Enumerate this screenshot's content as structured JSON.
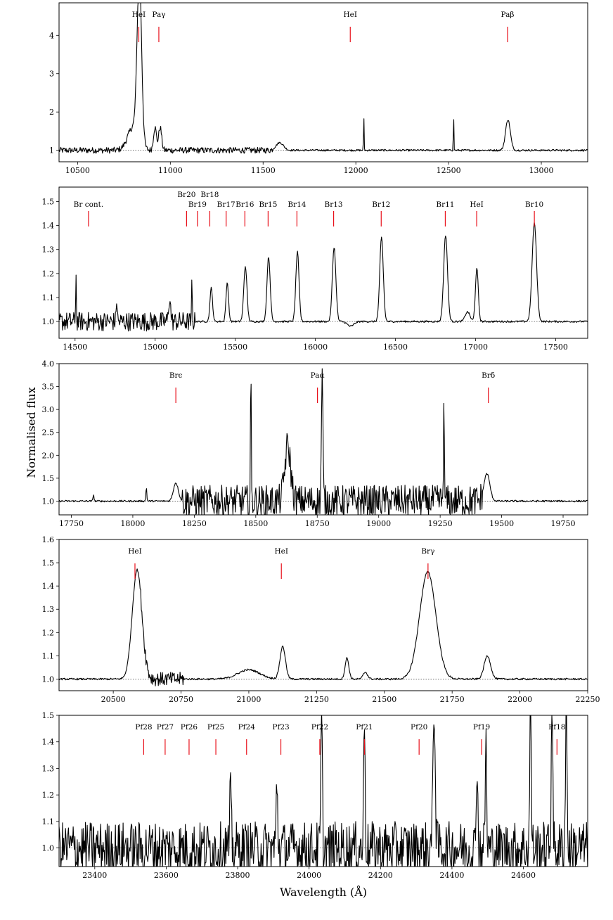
{
  "figure": {
    "ylabel": "Normalised flux",
    "xlabel": "Wavelength (Å)"
  },
  "chart_data": [
    {
      "type": "line",
      "xlim": [
        10400,
        13250
      ],
      "ylim": [
        0.7,
        4.85
      ],
      "xticks": [
        10500,
        11000,
        11500,
        12000,
        12500,
        13000
      ],
      "yticks": [
        1,
        2,
        3,
        4
      ],
      "continuum": 1.0,
      "line_markers": [
        {
          "label": "HeI",
          "x": 10830,
          "label_level": 0
        },
        {
          "label": "Paγ",
          "x": 10938,
          "label_level": 0
        },
        {
          "label": "HeI",
          "x": 11970,
          "label_level": 0
        },
        {
          "label": "Paβ",
          "x": 12818,
          "label_level": 0
        }
      ],
      "features": [
        {
          "x": 10833,
          "y": 4.3,
          "width": 12
        },
        {
          "x": 10800,
          "y": 0.6,
          "width": 30
        },
        {
          "x": 10917,
          "y": 0.6,
          "width": 8
        },
        {
          "x": 10945,
          "y": 0.6,
          "width": 8
        },
        {
          "x": 11590,
          "y": 0.2,
          "width": 20
        },
        {
          "x": 12043,
          "y": 0.88,
          "width": 1.5
        },
        {
          "x": 12527,
          "y": 0.98,
          "width": 1.5
        },
        {
          "x": 12820,
          "y": 0.8,
          "width": 13
        }
      ],
      "noise_regions": [
        {
          "from": 10400,
          "to": 11550,
          "amplitude": 0.08
        }
      ]
    },
    {
      "type": "line",
      "xlim": [
        14400,
        17700
      ],
      "ylim": [
        0.93,
        1.56
      ],
      "xticks": [
        14500,
        15000,
        15500,
        16000,
        16500,
        17000,
        17500
      ],
      "yticks": [
        1.0,
        1.1,
        1.2,
        1.3,
        1.4,
        1.5
      ],
      "continuum": 1.0,
      "line_markers": [
        {
          "label": "Br cont.",
          "x": 14584,
          "label_level": 1
        },
        {
          "label": "Br20",
          "x": 15196,
          "label_level": 0
        },
        {
          "label": "Br19",
          "x": 15264,
          "label_level": 1
        },
        {
          "label": "Br18",
          "x": 15341,
          "label_level": 0
        },
        {
          "label": "Br17",
          "x": 15443,
          "label_level": 1
        },
        {
          "label": "Br16",
          "x": 15560,
          "label_level": 1
        },
        {
          "label": "Br15",
          "x": 15705,
          "label_level": 1
        },
        {
          "label": "Br14",
          "x": 15885,
          "label_level": 1
        },
        {
          "label": "Br13",
          "x": 16114,
          "label_level": 1
        },
        {
          "label": "Br12",
          "x": 16411,
          "label_level": 1
        },
        {
          "label": "Br11",
          "x": 16811,
          "label_level": 1
        },
        {
          "label": "HeI",
          "x": 17007,
          "label_level": 1
        },
        {
          "label": "Br10",
          "x": 17367,
          "label_level": 1
        }
      ],
      "features": [
        {
          "x": 14505,
          "y": 0.3,
          "width": 1.5
        },
        {
          "x": 14760,
          "y": 0.1,
          "width": 3
        },
        {
          "x": 15090,
          "y": 0.1,
          "width": 6
        },
        {
          "x": 15230,
          "y": 0.22,
          "width": 1.5
        },
        {
          "x": 15350,
          "y": 0.14,
          "width": 8
        },
        {
          "x": 15450,
          "y": 0.16,
          "width": 8
        },
        {
          "x": 15563,
          "y": 0.23,
          "width": 10
        },
        {
          "x": 15708,
          "y": 0.27,
          "width": 10
        },
        {
          "x": 15888,
          "y": 0.29,
          "width": 10
        },
        {
          "x": 16117,
          "y": 0.31,
          "width": 11
        },
        {
          "x": 16413,
          "y": 0.35,
          "width": 11
        },
        {
          "x": 16813,
          "y": 0.36,
          "width": 12
        },
        {
          "x": 16950,
          "y": 0.04,
          "width": 15
        },
        {
          "x": 17008,
          "y": 0.22,
          "width": 9
        },
        {
          "x": 17367,
          "y": 0.41,
          "width": 14
        },
        {
          "x": 16220,
          "y": -0.02,
          "width": 20
        }
      ],
      "noise_regions": [
        {
          "from": 14400,
          "to": 15250,
          "amplitude": 0.04
        }
      ]
    },
    {
      "type": "line",
      "xlim": [
        17700,
        19850
      ],
      "ylim": [
        0.7,
        4.0
      ],
      "xticks": [
        17750,
        18000,
        18250,
        18500,
        18750,
        19000,
        19250,
        19500,
        19750
      ],
      "yticks": [
        1.0,
        1.5,
        2.0,
        2.5,
        3.0,
        3.5,
        4.0
      ],
      "continuum": 1.0,
      "line_markers": [
        {
          "label": "Brϵ",
          "x": 18175,
          "label_level": 0
        },
        {
          "label": "Paα",
          "x": 18751,
          "label_level": 0
        },
        {
          "label": "Brδ",
          "x": 19446,
          "label_level": 0
        }
      ],
      "features": [
        {
          "x": 17840,
          "y": 0.15,
          "width": 2
        },
        {
          "x": 18055,
          "y": 0.3,
          "width": 2
        },
        {
          "x": 18175,
          "y": 0.4,
          "width": 10
        },
        {
          "x": 18480,
          "y": 3.0,
          "width": 1.5
        },
        {
          "x": 18630,
          "y": 1.2,
          "width": 12
        },
        {
          "x": 18770,
          "y": 2.7,
          "width": 3
        },
        {
          "x": 19265,
          "y": 1.9,
          "width": 2
        },
        {
          "x": 19440,
          "y": 0.6,
          "width": 12
        }
      ],
      "noise_regions": [
        {
          "from": 18200,
          "to": 19420,
          "amplitude": 0.35
        }
      ]
    },
    {
      "type": "line",
      "xlim": [
        20300,
        22250
      ],
      "ylim": [
        0.95,
        1.6
      ],
      "xticks": [
        20500,
        20750,
        21000,
        21250,
        21500,
        21750,
        22000,
        22250
      ],
      "yticks": [
        1.0,
        1.1,
        1.2,
        1.3,
        1.4,
        1.5,
        1.6
      ],
      "continuum": 1.0,
      "line_markers": [
        {
          "label": "HeI",
          "x": 20580,
          "label_level": 0
        },
        {
          "label": "HeI",
          "x": 21120,
          "label_level": 0
        },
        {
          "label": "Brγ",
          "x": 21661,
          "label_level": 0
        }
      ],
      "features": [
        {
          "x": 20588,
          "y": 0.47,
          "width": 18
        },
        {
          "x": 21000,
          "y": 0.04,
          "width": 40
        },
        {
          "x": 21125,
          "y": 0.14,
          "width": 10
        },
        {
          "x": 21362,
          "y": 0.09,
          "width": 7
        },
        {
          "x": 21430,
          "y": 0.03,
          "width": 8
        },
        {
          "x": 21660,
          "y": 0.46,
          "width": 30
        },
        {
          "x": 21880,
          "y": 0.1,
          "width": 12
        }
      ],
      "noise_regions": [
        {
          "from": 20600,
          "to": 20760,
          "amplitude": 0.03
        }
      ]
    },
    {
      "type": "line",
      "xlim": [
        23300,
        24780
      ],
      "ylim": [
        0.93,
        1.5
      ],
      "xticks": [
        23400,
        23600,
        23800,
        24000,
        24200,
        24400,
        24600
      ],
      "yticks": [
        1.0,
        1.1,
        1.2,
        1.3,
        1.4,
        1.5
      ],
      "continuum": 1.0,
      "line_markers": [
        {
          "label": "Pf28",
          "x": 23537,
          "label_level": 0
        },
        {
          "label": "Pf27",
          "x": 23597,
          "label_level": 0
        },
        {
          "label": "Pf26",
          "x": 23664,
          "label_level": 0
        },
        {
          "label": "Pf25",
          "x": 23739,
          "label_level": 0
        },
        {
          "label": "Pf24",
          "x": 23825,
          "label_level": 0
        },
        {
          "label": "Pf23",
          "x": 23921,
          "label_level": 0
        },
        {
          "label": "Pf22",
          "x": 24030,
          "label_level": 0
        },
        {
          "label": "Pf21",
          "x": 24155,
          "label_level": 0
        },
        {
          "label": "Pf20",
          "x": 24308,
          "label_level": 0
        },
        {
          "label": "Pf19",
          "x": 24483,
          "label_level": 0
        },
        {
          "label": "Pf18",
          "x": 24694,
          "label_level": 0
        }
      ],
      "features": [
        {
          "x": 23780,
          "y": 0.2,
          "width": 2
        },
        {
          "x": 23910,
          "y": 0.25,
          "width": 2
        },
        {
          "x": 24035,
          "y": 0.5,
          "width": 2
        },
        {
          "x": 24155,
          "y": 0.5,
          "width": 2
        },
        {
          "x": 24350,
          "y": 0.55,
          "width": 3
        },
        {
          "x": 24470,
          "y": 0.35,
          "width": 2
        },
        {
          "x": 24495,
          "y": 0.4,
          "width": 2
        },
        {
          "x": 24620,
          "y": 0.6,
          "width": 2
        },
        {
          "x": 24680,
          "y": 0.6,
          "width": 2
        },
        {
          "x": 24720,
          "y": 0.6,
          "width": 2
        }
      ],
      "noise_regions": [
        {
          "from": 23300,
          "to": 24780,
          "amplitude": 0.1
        }
      ]
    }
  ]
}
